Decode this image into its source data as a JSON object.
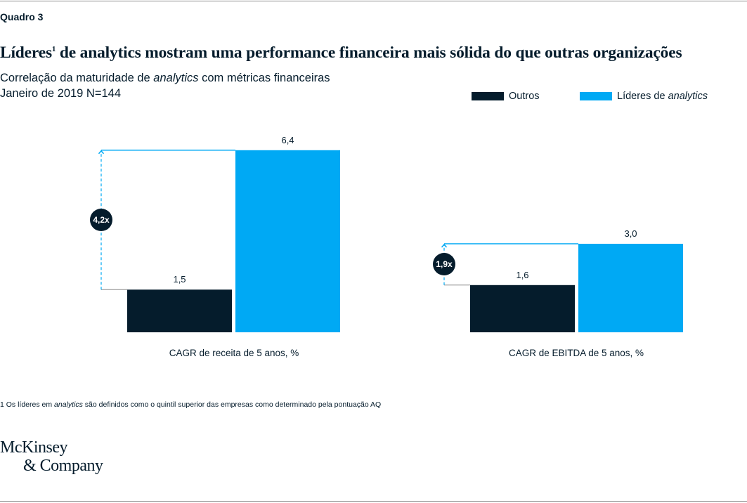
{
  "header": {
    "label": "Quadro 3",
    "title": "Líderes",
    "title_sup": "1",
    "title_rest": " de analytics mostram uma performance financeira mais sólida do que outras organizações",
    "subtitle_pre": "Correlação da maturidade de ",
    "subtitle_em": "analytics",
    "subtitle_post": " com métricas financeiras",
    "date": "Janeiro de 2019 N=144"
  },
  "legend": {
    "outros": "Outros",
    "lideres_pre": "Líderes de ",
    "lideres_em": "analytics"
  },
  "colors": {
    "outros": "#051c2c",
    "lideres": "#00a9f4"
  },
  "chart_data": [
    {
      "type": "bar",
      "xlabel": "CAGR de receita de 5 anos, %",
      "categories": [
        "Outros",
        "Líderes de analytics"
      ],
      "values": [
        1.5,
        6.4
      ],
      "value_labels": [
        "1,5",
        "6,4"
      ],
      "multiplier": "4,2x"
    },
    {
      "type": "bar",
      "xlabel": "CAGR de EBITDA de 5 anos, %",
      "categories": [
        "Outros",
        "Líderes de analytics"
      ],
      "values": [
        1.6,
        3.0
      ],
      "value_labels": [
        "1,6",
        "3,0"
      ],
      "multiplier": "1,9x"
    }
  ],
  "footnote": {
    "pre": "1 Os líderes em ",
    "em": "analytics",
    "post": " são definidos como o quintil superior das empresas como determinado pela pontuação AQ"
  },
  "logo": {
    "line1": "McKinsey",
    "line2": "& Company"
  }
}
